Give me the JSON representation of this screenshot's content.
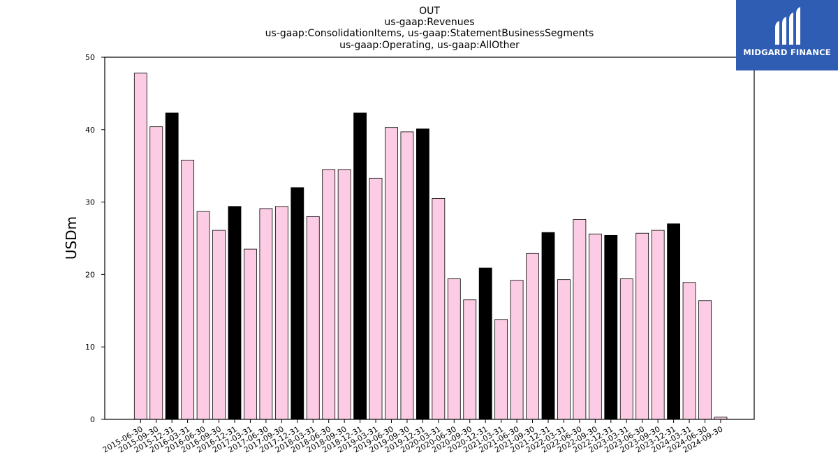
{
  "brand": {
    "name": "MIDGARD FINANCE",
    "color": "#2f5db3"
  },
  "chart_data": {
    "type": "bar",
    "title_lines": [
      "OUT",
      "us-gaap:Revenues",
      "us-gaap:ConsolidationItems, us-gaap:StatementBusinessSegments",
      "us-gaap:Operating, us-gaap:AllOther"
    ],
    "xlabel": "",
    "ylabel": "USDm",
    "ylim": [
      0,
      50
    ],
    "yticks": [
      0,
      10,
      20,
      30,
      40,
      50
    ],
    "grid": false,
    "colors": {
      "quarter": "#fbcce3",
      "year_end": "#000000",
      "edge": "#000000"
    },
    "categories": [
      "2015-06-30",
      "2015-09-30",
      "2015-12-31",
      "2016-03-31",
      "2016-06-30",
      "2016-09-30",
      "2016-12-31",
      "2017-03-31",
      "2017-06-30",
      "2017-09-30",
      "2017-12-31",
      "2018-03-31",
      "2018-06-30",
      "2018-09-30",
      "2018-12-31",
      "2019-03-31",
      "2019-06-30",
      "2019-09-30",
      "2019-12-31",
      "2020-03-31",
      "2020-06-30",
      "2020-09-30",
      "2020-12-31",
      "2021-03-31",
      "2021-06-30",
      "2021-09-30",
      "2021-12-31",
      "2022-03-31",
      "2022-06-30",
      "2022-09-30",
      "2022-12-31",
      "2023-03-31",
      "2023-06-30",
      "2023-09-30",
      "2023-12-31",
      "2024-03-31",
      "2024-06-30",
      "2024-09-30"
    ],
    "values": [
      47.8,
      40.4,
      42.3,
      35.8,
      28.7,
      26.1,
      29.4,
      23.5,
      29.1,
      29.4,
      32.0,
      28.0,
      34.5,
      34.5,
      42.3,
      33.3,
      40.3,
      39.7,
      40.1,
      30.5,
      19.4,
      16.5,
      20.9,
      13.8,
      19.2,
      22.9,
      25.8,
      19.3,
      27.6,
      25.6,
      25.4,
      19.4,
      25.7,
      26.1,
      27.0,
      18.9,
      16.4,
      0.3
    ],
    "year_end": [
      false,
      false,
      true,
      false,
      false,
      false,
      true,
      false,
      false,
      false,
      true,
      false,
      false,
      false,
      true,
      false,
      false,
      false,
      true,
      false,
      false,
      false,
      true,
      false,
      false,
      false,
      true,
      false,
      false,
      false,
      true,
      false,
      false,
      false,
      true,
      false,
      false,
      false
    ]
  }
}
